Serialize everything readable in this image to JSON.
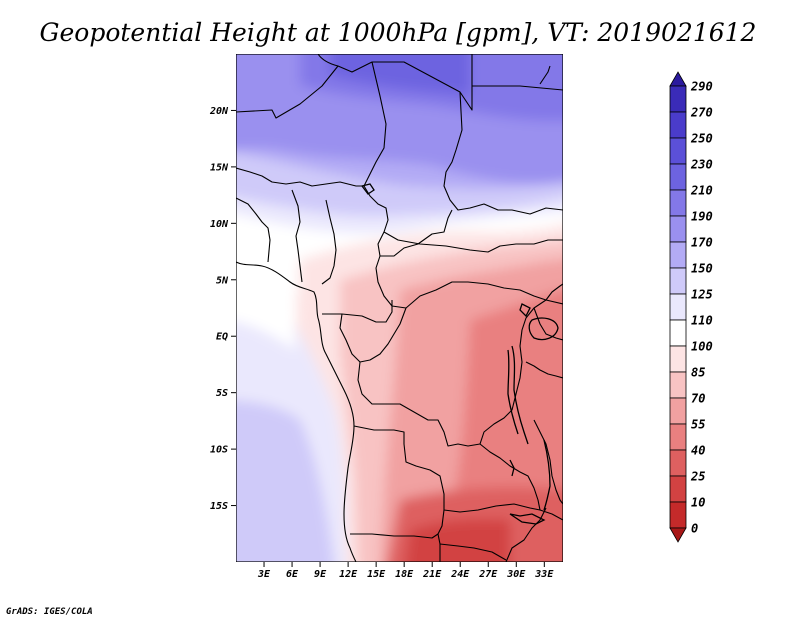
{
  "figure": {
    "title": "Geopotential Height at 1000hPa [gpm], VT: 2019021612",
    "credit": "GrADS: IGES/COLA"
  },
  "map": {
    "lon_range": [
      0,
      35
    ],
    "lat_range": [
      -20,
      25
    ],
    "lon_ticks": [
      {
        "value": 3,
        "label": "3E"
      },
      {
        "value": 6,
        "label": "6E"
      },
      {
        "value": 9,
        "label": "9E"
      },
      {
        "value": 12,
        "label": "12E"
      },
      {
        "value": 15,
        "label": "15E"
      },
      {
        "value": 18,
        "label": "18E"
      },
      {
        "value": 21,
        "label": "21E"
      },
      {
        "value": 24,
        "label": "24E"
      },
      {
        "value": 27,
        "label": "27E"
      },
      {
        "value": 30,
        "label": "30E"
      },
      {
        "value": 33,
        "label": "33E"
      }
    ],
    "lat_ticks": [
      {
        "value": 20,
        "label": "20N"
      },
      {
        "value": 15,
        "label": "15N"
      },
      {
        "value": 10,
        "label": "10N"
      },
      {
        "value": 5,
        "label": "5N"
      },
      {
        "value": 0,
        "label": "EQ"
      },
      {
        "value": -5,
        "label": "5S"
      },
      {
        "value": -10,
        "label": "10S"
      },
      {
        "value": -15,
        "label": "15S"
      }
    ]
  },
  "colorbar": {
    "labels": [
      "290",
      "270",
      "250",
      "230",
      "210",
      "190",
      "170",
      "150",
      "125",
      "110",
      "100",
      "85",
      "70",
      "55",
      "40",
      "25",
      "10",
      "0"
    ],
    "colors": [
      "#2b1a9e",
      "#3a2bb8",
      "#4a3ccb",
      "#5b50d8",
      "#6d63e0",
      "#8378e8",
      "#9a90ef",
      "#b3abf5",
      "#cfcaf9",
      "#eae8fd",
      "#ffffff",
      "#fde4e4",
      "#f8c3c3",
      "#f1a1a1",
      "#e98080",
      "#de6060",
      "#d24242",
      "#c42a2a",
      "#a81818"
    ]
  }
}
